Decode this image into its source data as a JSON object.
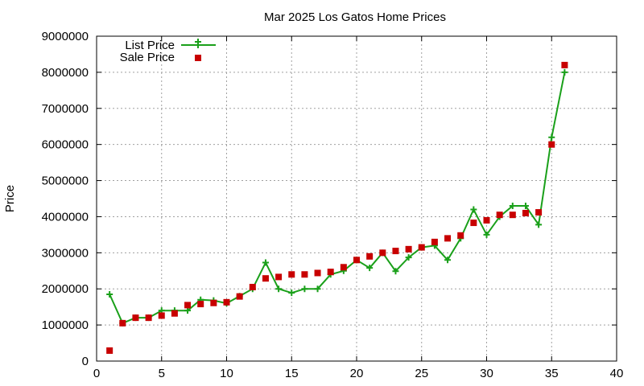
{
  "chart_data": {
    "type": "line",
    "title": "Mar 2025 Los Gatos Home Prices",
    "xlabel": "",
    "ylabel": "Price",
    "xlim": [
      0,
      40
    ],
    "ylim": [
      0,
      9000000
    ],
    "x_ticks": [
      0,
      5,
      10,
      15,
      20,
      25,
      30,
      35,
      40
    ],
    "y_ticks": [
      0,
      1000000,
      2000000,
      3000000,
      4000000,
      5000000,
      6000000,
      7000000,
      8000000,
      9000000
    ],
    "grid": true,
    "legend_position": "top-left",
    "series": [
      {
        "name": "List Price",
        "style": "line-with-plus-markers",
        "color": "#1aa01a",
        "x": [
          1,
          2,
          3,
          4,
          5,
          6,
          7,
          8,
          9,
          10,
          11,
          12,
          13,
          14,
          15,
          16,
          17,
          18,
          19,
          20,
          21,
          22,
          23,
          24,
          25,
          26,
          27,
          28,
          29,
          30,
          31,
          32,
          33,
          34,
          35,
          36
        ],
        "values": [
          1850000,
          1050000,
          1200000,
          1200000,
          1400000,
          1400000,
          1400000,
          1700000,
          1680000,
          1600000,
          1800000,
          2000000,
          2730000,
          2000000,
          1890000,
          2000000,
          2000000,
          2400000,
          2500000,
          2800000,
          2580000,
          3000000,
          2490000,
          2870000,
          3150000,
          3200000,
          2800000,
          3400000,
          4200000,
          3500000,
          4000000,
          4300000,
          4300000,
          3780000,
          6200000,
          8000000
        ]
      },
      {
        "name": "Sale Price",
        "style": "square-markers",
        "color": "#c80000",
        "x": [
          1,
          2,
          3,
          4,
          5,
          6,
          7,
          8,
          9,
          10,
          11,
          12,
          13,
          14,
          15,
          16,
          17,
          18,
          19,
          20,
          21,
          22,
          23,
          24,
          25,
          26,
          27,
          28,
          29,
          30,
          31,
          32,
          33,
          34,
          35,
          36
        ],
        "values": [
          290000,
          1050000,
          1200000,
          1200000,
          1260000,
          1320000,
          1550000,
          1580000,
          1610000,
          1630000,
          1790000,
          2050000,
          2290000,
          2330000,
          2400000,
          2400000,
          2440000,
          2470000,
          2600000,
          2800000,
          2900000,
          3000000,
          3050000,
          3100000,
          3150000,
          3300000,
          3400000,
          3480000,
          3830000,
          3900000,
          4050000,
          4050000,
          4100000,
          4120000,
          6000000,
          8200000
        ]
      }
    ]
  }
}
